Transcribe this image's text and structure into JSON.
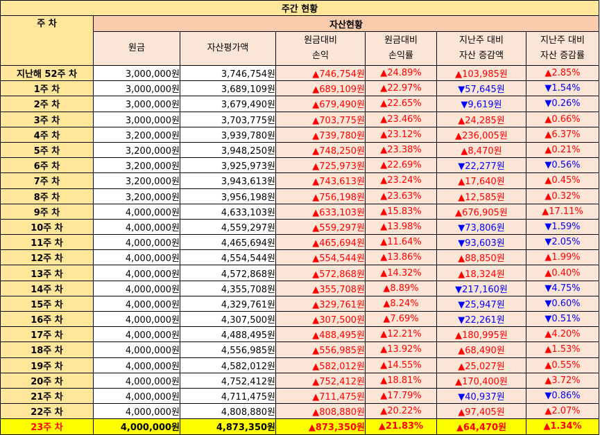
{
  "title": "주간 현황",
  "header": {
    "week_label": "주 차",
    "group_label": "자산현황",
    "columns": [
      {
        "line1": "원금",
        "line2": ""
      },
      {
        "line1": "자산평가액",
        "line2": ""
      },
      {
        "line1": "원금대비",
        "line2": "손익"
      },
      {
        "line1": "원금대비",
        "line2": "손익률"
      },
      {
        "line1": "지난주 대비",
        "line2": "자산 증감액"
      },
      {
        "line1": "지난주 대비",
        "line2": "자산 증감률"
      }
    ]
  },
  "colors": {
    "up": "#FF0000",
    "down": "#0000FF",
    "highlight": "#FFFF00",
    "header_yellow": "#FFE699",
    "header_pink": "#F8CBAD"
  },
  "rows": [
    {
      "week": "지난해 52주 차",
      "principal": "3,000,000원",
      "value": "3,746,754원",
      "pl": "▲746,754원",
      "pl_rate": "▲24.89%",
      "wow": "▲103,985원",
      "wow_rate": "▲2.85%"
    },
    {
      "week": "1주 차",
      "principal": "3,000,000원",
      "value": "3,689,109원",
      "pl": "▲689,109원",
      "pl_rate": "▲22.97%",
      "wow": "▼57,645원",
      "wow_rate": "▼1.54%"
    },
    {
      "week": "2주 차",
      "principal": "3,000,000원",
      "value": "3,679,490원",
      "pl": "▲679,490원",
      "pl_rate": "▲22.65%",
      "wow": "▼9,619원",
      "wow_rate": "▼0.26%"
    },
    {
      "week": "3주 차",
      "principal": "3,000,000원",
      "value": "3,703,775원",
      "pl": "▲703,775원",
      "pl_rate": "▲23.46%",
      "wow": "▲24,285원",
      "wow_rate": "▲0.66%"
    },
    {
      "week": "4주 차",
      "principal": "3,200,000원",
      "value": "3,939,780원",
      "pl": "▲739,780원",
      "pl_rate": "▲23.12%",
      "wow": "▲236,005원",
      "wow_rate": "▲6.37%"
    },
    {
      "week": "5주 차",
      "principal": "3,200,000원",
      "value": "3,948,250원",
      "pl": "▲748,250원",
      "pl_rate": "▲23.38%",
      "wow": "▲8,470원",
      "wow_rate": "▲0.21%"
    },
    {
      "week": "6주 차",
      "principal": "3,200,000원",
      "value": "3,925,973원",
      "pl": "▲725,973원",
      "pl_rate": "▲22.69%",
      "wow": "▼22,277원",
      "wow_rate": "▼0.56%"
    },
    {
      "week": "7주 차",
      "principal": "3,200,000원",
      "value": "3,943,613원",
      "pl": "▲743,613원",
      "pl_rate": "▲23.24%",
      "wow": "▲17,640원",
      "wow_rate": "▲0.45%"
    },
    {
      "week": "8주 차",
      "principal": "3,200,000원",
      "value": "3,956,198원",
      "pl": "▲756,198원",
      "pl_rate": "▲23.63%",
      "wow": "▲12,585원",
      "wow_rate": "▲0.32%"
    },
    {
      "week": "9주 차",
      "principal": "4,000,000원",
      "value": "4,633,103원",
      "pl": "▲633,103원",
      "pl_rate": "▲15.83%",
      "wow": "▲676,905원",
      "wow_rate": "▲17.11%"
    },
    {
      "week": "10주 차",
      "principal": "4,000,000원",
      "value": "4,559,297원",
      "pl": "▲559,297원",
      "pl_rate": "▲13.98%",
      "wow": "▼73,806원",
      "wow_rate": "▼1.59%"
    },
    {
      "week": "11주 차",
      "principal": "4,000,000원",
      "value": "4,465,694원",
      "pl": "▲465,694원",
      "pl_rate": "▲11.64%",
      "wow": "▼93,603원",
      "wow_rate": "▼2.05%"
    },
    {
      "week": "12주 차",
      "principal": "4,000,000원",
      "value": "4,554,544원",
      "pl": "▲554,544원",
      "pl_rate": "▲13.86%",
      "wow": "▲88,850원",
      "wow_rate": "▲1.99%"
    },
    {
      "week": "13주 차",
      "principal": "4,000,000원",
      "value": "4,572,868원",
      "pl": "▲572,868원",
      "pl_rate": "▲14.32%",
      "wow": "▲18,324원",
      "wow_rate": "▲0.40%"
    },
    {
      "week": "14주 차",
      "principal": "4,000,000원",
      "value": "4,355,708원",
      "pl": "▲355,708원",
      "pl_rate": "▲8.89%",
      "wow": "▼217,160원",
      "wow_rate": "▼4.75%"
    },
    {
      "week": "15주 차",
      "principal": "4,000,000원",
      "value": "4,329,761원",
      "pl": "▲329,761원",
      "pl_rate": "▲8.24%",
      "wow": "▼25,947원",
      "wow_rate": "▼0.60%"
    },
    {
      "week": "16주 차",
      "principal": "4,000,000원",
      "value": "4,307,500원",
      "pl": "▲307,500원",
      "pl_rate": "▲7.69%",
      "wow": "▼22,261원",
      "wow_rate": "▼0.51%"
    },
    {
      "week": "17주 차",
      "principal": "4,000,000원",
      "value": "4,488,495원",
      "pl": "▲488,495원",
      "pl_rate": "▲12.21%",
      "wow": "▲180,995원",
      "wow_rate": "▲4.20%"
    },
    {
      "week": "18주 차",
      "principal": "4,000,000원",
      "value": "4,556,985원",
      "pl": "▲556,985원",
      "pl_rate": "▲13.92%",
      "wow": "▲68,490원",
      "wow_rate": "▲1.53%"
    },
    {
      "week": "19주 차",
      "principal": "4,000,000원",
      "value": "4,582,012원",
      "pl": "▲582,012원",
      "pl_rate": "▲14.55%",
      "wow": "▲25,027원",
      "wow_rate": "▲0.55%"
    },
    {
      "week": "20주 차",
      "principal": "4,000,000원",
      "value": "4,752,412원",
      "pl": "▲752,412원",
      "pl_rate": "▲18.81%",
      "wow": "▲170,400원",
      "wow_rate": "▲3.72%"
    },
    {
      "week": "21주 차",
      "principal": "4,000,000원",
      "value": "4,711,475원",
      "pl": "▲711,475원",
      "pl_rate": "▲17.79%",
      "wow": "▼40,937원",
      "wow_rate": "▼0.86%"
    },
    {
      "week": "22주 차",
      "principal": "4,000,000원",
      "value": "4,808,880원",
      "pl": "▲808,880원",
      "pl_rate": "▲20.22%",
      "wow": "▲97,405원",
      "wow_rate": "▲2.07%"
    },
    {
      "week": "23주 차",
      "principal": "4,000,000원",
      "value": "4,873,350원",
      "pl": "▲873,350원",
      "pl_rate": "▲21.83%",
      "wow": "▲64,470원",
      "wow_rate": "▲1.34%",
      "highlight": true
    }
  ]
}
